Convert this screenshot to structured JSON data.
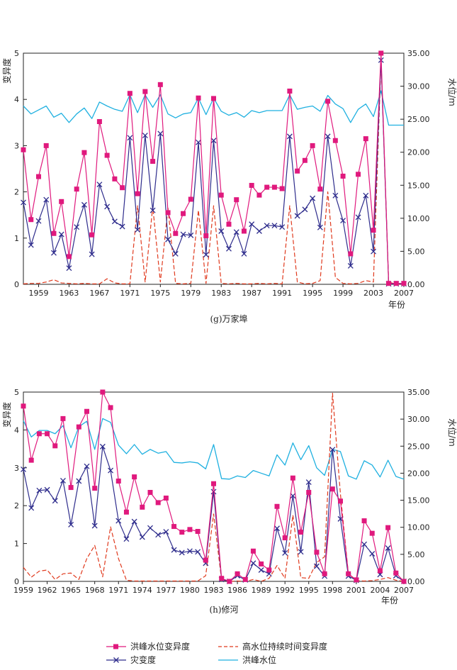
{
  "colors": {
    "peak_level_variation": "#e0197d",
    "disaster_variation": "#2e2c8c",
    "high_level_duration_variation": "#e03a1e",
    "flood_peak_level": "#1fb0e0",
    "axis": "#222222"
  },
  "legend": {
    "peak_level_variation": "洪峰水位变异度",
    "high_level_duration_variation": "高水位持续时间变异度",
    "disaster_variation": "灾变度",
    "flood_peak_level": "洪峰水位"
  },
  "chart_data": [
    {
      "type": "line",
      "caption": "(g)万家埠",
      "ylabel_left": "变异度",
      "ylabel_right": "水位/m",
      "xlabel": "年份",
      "xlim": [
        1957,
        2007
      ],
      "ylim_left": [
        0,
        5
      ],
      "ylim_right": [
        0,
        35
      ],
      "left_ticks": [
        "0",
        "1",
        "2",
        "3",
        "4",
        "5"
      ],
      "right_ticks": [
        "0.00",
        "5.00",
        "10.00",
        "15.00",
        "20.00",
        "25.00",
        "30.00",
        "35.00"
      ],
      "x_ticks": [
        "1959",
        "1963",
        "1967",
        "1971",
        "1975",
        "1979",
        "1983",
        "1987",
        "1991",
        "1995",
        "1999",
        "2003",
        "2007"
      ],
      "x": [
        1957,
        1958,
        1959,
        1960,
        1961,
        1962,
        1963,
        1964,
        1965,
        1966,
        1967,
        1968,
        1969,
        1970,
        1971,
        1972,
        1973,
        1974,
        1975,
        1976,
        1977,
        1978,
        1979,
        1980,
        1981,
        1982,
        1983,
        1984,
        1985,
        1986,
        1987,
        1988,
        1989,
        1990,
        1991,
        1992,
        1993,
        1994,
        1995,
        1996,
        1997,
        1998,
        1999,
        2000,
        2001,
        2002,
        2003,
        2004,
        2005,
        2006,
        2007
      ],
      "series": [
        {
          "name": "洪峰水位变异度",
          "axis": "left",
          "style": "square",
          "values": [
            2.91,
            1.4,
            2.33,
            3.0,
            1.1,
            1.79,
            0.6,
            2.06,
            2.85,
            1.07,
            3.52,
            2.79,
            2.28,
            2.09,
            4.13,
            1.96,
            4.17,
            2.66,
            4.32,
            1.55,
            1.1,
            1.53,
            1.84,
            4.03,
            1.05,
            4.02,
            1.93,
            1.3,
            1.83,
            1.15,
            2.14,
            1.93,
            2.1,
            2.1,
            2.07,
            4.18,
            2.45,
            2.68,
            3.0,
            2.06,
            3.96,
            3.11,
            2.34,
            0.66,
            2.38,
            3.15,
            1.17,
            5.0,
            0.02,
            0.02,
            0.02
          ]
        },
        {
          "name": "灾变度",
          "axis": "left",
          "style": "x",
          "values": [
            1.77,
            0.85,
            1.37,
            1.83,
            0.68,
            1.08,
            0.35,
            1.24,
            1.72,
            0.65,
            2.16,
            1.68,
            1.36,
            1.25,
            3.17,
            1.18,
            3.22,
            1.6,
            3.26,
            0.97,
            0.66,
            1.08,
            1.06,
            3.07,
            0.64,
            3.11,
            1.15,
            0.77,
            1.13,
            0.66,
            1.3,
            1.15,
            1.27,
            1.27,
            1.24,
            3.2,
            1.48,
            1.62,
            1.86,
            1.23,
            3.2,
            1.92,
            1.38,
            0.4,
            1.45,
            1.92,
            0.71,
            4.85,
            0.01,
            0.01,
            0.01
          ]
        },
        {
          "name": "高水位持续时间变异度",
          "axis": "left",
          "style": "dashed",
          "values": [
            0.01,
            0.02,
            0.02,
            0.05,
            0.1,
            0.03,
            0.02,
            0.01,
            0.02,
            0.01,
            0.01,
            0.12,
            0.03,
            0.01,
            0.01,
            1.7,
            0.05,
            1.68,
            0.05,
            1.65,
            0.02,
            0.01,
            0.02,
            1.6,
            0.02,
            1.7,
            0.02,
            0.01,
            0.02,
            0.01,
            0.01,
            0.02,
            0.01,
            0.02,
            0.01,
            1.7,
            0.05,
            0.01,
            0.02,
            0.08,
            2.0,
            0.15,
            0.02,
            0.01,
            0.02,
            0.08,
            0.05,
            4.85,
            0.05,
            0.0,
            0.0
          ]
        },
        {
          "name": "洪峰水位",
          "axis": "right",
          "style": "solid",
          "values": [
            27.0,
            25.8,
            26.4,
            27.0,
            25.3,
            25.9,
            24.5,
            25.8,
            26.7,
            25.1,
            27.6,
            27.0,
            26.5,
            26.2,
            28.7,
            26.0,
            28.7,
            26.8,
            28.7,
            25.8,
            25.2,
            25.8,
            26.0,
            28.2,
            25.7,
            28.2,
            26.2,
            25.6,
            26.0,
            25.3,
            26.3,
            26.0,
            26.3,
            26.3,
            26.3,
            28.7,
            26.5,
            26.8,
            27.0,
            26.2,
            28.6,
            27.3,
            26.6,
            24.5,
            26.5,
            27.3,
            25.4,
            29.3,
            24.1,
            24.1,
            24.1
          ]
        }
      ]
    },
    {
      "type": "line",
      "caption": "(h)修河",
      "ylabel_left": "变异度",
      "ylabel_right": "水位/m",
      "xlabel": "年份",
      "xlim": [
        1959,
        2007
      ],
      "ylim_left": [
        0,
        5
      ],
      "ylim_right": [
        0,
        35
      ],
      "left_ticks": [
        "0",
        "1",
        "2",
        "3",
        "4",
        "5"
      ],
      "right_ticks": [
        "0.00",
        "5.00",
        "10.00",
        "15.00",
        "20.00",
        "25.00",
        "30.00",
        "35.00"
      ],
      "x_ticks": [
        "1959",
        "1962",
        "1965",
        "1968",
        "1971",
        "1974",
        "1977",
        "1980",
        "1983",
        "1986",
        "1989",
        "1992",
        "1995",
        "1998",
        "2001",
        "2004",
        "2007"
      ],
      "x": [
        1959,
        1960,
        1961,
        1962,
        1963,
        1964,
        1965,
        1966,
        1967,
        1968,
        1969,
        1970,
        1971,
        1972,
        1973,
        1974,
        1975,
        1976,
        1977,
        1978,
        1979,
        1980,
        1981,
        1982,
        1983,
        1984,
        1985,
        1986,
        1987,
        1988,
        1989,
        1990,
        1991,
        1992,
        1993,
        1994,
        1995,
        1996,
        1997,
        1998,
        1999,
        2000,
        2001,
        2002,
        2003,
        2004,
        2005,
        2006,
        2007
      ],
      "series": [
        {
          "name": "洪峰水位变异度",
          "axis": "left",
          "style": "square",
          "values": [
            4.63,
            3.2,
            3.9,
            3.9,
            3.58,
            4.3,
            2.48,
            4.08,
            4.49,
            2.46,
            5.0,
            4.59,
            2.65,
            1.83,
            2.76,
            1.96,
            2.35,
            2.08,
            2.2,
            1.45,
            1.3,
            1.37,
            1.32,
            0.56,
            2.58,
            0.08,
            0.0,
            0.2,
            0.05,
            0.8,
            0.46,
            0.3,
            1.98,
            1.15,
            2.73,
            1.3,
            2.35,
            0.77,
            0.2,
            2.44,
            2.12,
            0.2,
            0.04,
            1.6,
            1.27,
            0.28,
            1.42,
            0.22,
            0.0
          ]
        },
        {
          "name": "灾变度",
          "axis": "left",
          "style": "x",
          "values": [
            2.96,
            1.94,
            2.4,
            2.42,
            2.13,
            2.66,
            1.5,
            2.65,
            3.04,
            1.47,
            3.56,
            2.93,
            1.6,
            1.12,
            1.58,
            1.17,
            1.41,
            1.23,
            1.31,
            0.83,
            0.76,
            0.8,
            0.78,
            0.48,
            2.37,
            0.05,
            0.0,
            0.15,
            0.04,
            0.48,
            0.3,
            0.2,
            1.4,
            0.75,
            2.26,
            0.78,
            2.62,
            0.4,
            0.14,
            3.48,
            1.65,
            0.14,
            0.03,
            0.98,
            0.73,
            0.18,
            0.88,
            0.15,
            0.0
          ]
        },
        {
          "name": "高水位持续时间变异度",
          "axis": "left",
          "style": "dashed",
          "values": [
            0.37,
            0.11,
            0.27,
            0.3,
            0.05,
            0.2,
            0.22,
            0.05,
            0.6,
            0.95,
            0.12,
            1.44,
            0.6,
            0.03,
            0.01,
            0.01,
            0.01,
            0.01,
            0.01,
            0.01,
            0.01,
            0.01,
            0.01,
            0.15,
            1.78,
            0.04,
            0.0,
            0.01,
            0.0,
            0.05,
            0.0,
            0.08,
            0.42,
            0.08,
            1.75,
            0.1,
            0.08,
            0.5,
            0.65,
            4.97,
            2.3,
            0.2,
            0.02,
            0.01,
            0.02,
            0.05,
            0.1,
            0.03,
            0.0
          ]
        },
        {
          "name": "洪峰水位",
          "axis": "right",
          "style": "solid",
          "values": [
            29.7,
            26.7,
            27.9,
            27.9,
            27.3,
            28.8,
            24.7,
            28.6,
            29.6,
            24.4,
            30.1,
            29.4,
            25.2,
            23.6,
            25.3,
            23.5,
            24.4,
            23.7,
            24.0,
            22.0,
            21.9,
            22.1,
            21.9,
            20.8,
            25.3,
            19.0,
            18.9,
            19.5,
            19.2,
            20.5,
            20.0,
            19.5,
            23.4,
            21.5,
            25.6,
            22.5,
            25.1,
            21.0,
            19.6,
            24.4,
            24.0,
            19.5,
            18.9,
            22.3,
            21.5,
            19.3,
            22.4,
            19.4,
            18.9
          ]
        }
      ]
    }
  ]
}
